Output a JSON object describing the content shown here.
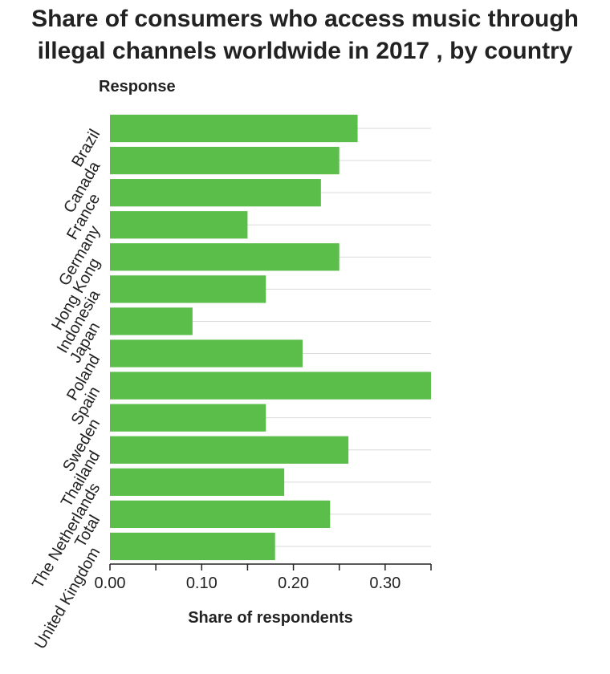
{
  "chart_data": {
    "type": "bar",
    "orientation": "horizontal",
    "title": "Share of consumers who access music through illegal channels worldwide in 2017 , by country",
    "title_lines": [
      "Share of consumers who access music through",
      "illegal channels worldwide in 2017 , by country"
    ],
    "ylabel": "Response",
    "xlabel": "Share of respondents",
    "categories": [
      "Brazil",
      "Canada",
      "France",
      "Germany",
      "Hong Kong",
      "Indonesia",
      "Japan",
      "Poland",
      "Spain",
      "Sweden",
      "Thailand",
      "The Netherlands",
      "Total",
      "United Kingdom"
    ],
    "values": [
      0.27,
      0.25,
      0.23,
      0.15,
      0.25,
      0.17,
      0.09,
      0.21,
      0.35,
      0.17,
      0.26,
      0.19,
      0.24,
      0.18
    ],
    "xlim": [
      0,
      0.35
    ],
    "xticks": [
      0,
      0.1,
      0.2,
      0.3
    ],
    "xtick_labels": [
      "0.00",
      "0.10",
      "0.20",
      "0.30"
    ],
    "bar_color": "#5bbd4a",
    "grid": true,
    "legend": "none"
  }
}
